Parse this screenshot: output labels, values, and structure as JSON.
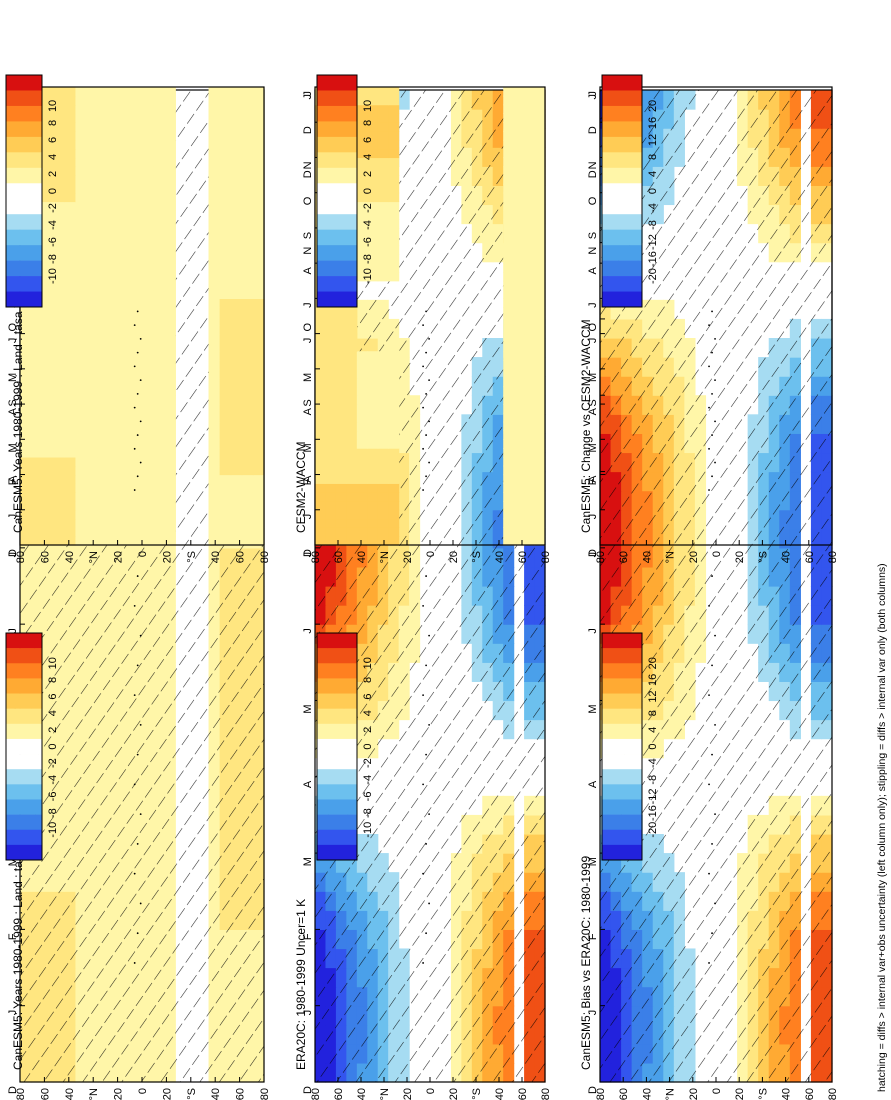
{
  "figure": {
    "orientation": "rotated-90-ccw",
    "caption": "hatching = diffs > internal var+obs uncertainty (left column only); stippling = diffs > internal var only (both columns)"
  },
  "chart_data": [
    {
      "id": "p1",
      "type": "heatmap",
      "column": "left",
      "row": 1,
      "title": "CanESM5: Years 1980-1999 : Land : tasa (K)",
      "x": [
        "D",
        "J",
        "F",
        "M",
        "A",
        "M",
        "J",
        "J",
        "A",
        "S",
        "O",
        "N",
        "D",
        "J"
      ],
      "y": [
        "80",
        "60",
        "40",
        "°N",
        "20",
        "0",
        "20",
        "°S",
        "40",
        "60",
        "80"
      ],
      "colorbar": {
        "ticks": [
          "10",
          "8",
          "6",
          "4",
          "2",
          "0",
          "-2",
          "-4",
          "-6",
          "-8",
          "-10"
        ]
      },
      "field": "mostly-positive-weak",
      "hatching": true,
      "stippling": true
    },
    {
      "id": "p2",
      "type": "heatmap",
      "column": "left",
      "row": 2,
      "title": "ERA20C: 1980-1999 Uncer=1 K",
      "x": [
        "D",
        "J",
        "F",
        "M",
        "A",
        "M",
        "J",
        "J",
        "A",
        "S",
        "O",
        "N",
        "D",
        "J"
      ],
      "y": [
        "80",
        "60",
        "40",
        "°N",
        "20",
        "0",
        "20",
        "°S",
        "40",
        "60",
        "80"
      ],
      "colorbar": {
        "ticks": [
          "10",
          "8",
          "6",
          "4",
          "2",
          "0",
          "-2",
          "-4",
          "-6",
          "-8",
          "-10"
        ]
      },
      "field": "seasonal-cycle-strong",
      "hatching": true,
      "stippling": true
    },
    {
      "id": "p3",
      "type": "heatmap",
      "column": "left",
      "row": 3,
      "title": "CanESM5: Bias vs ERA20C: 1980-1999",
      "x": [
        "D",
        "J",
        "F",
        "M",
        "A",
        "M",
        "J",
        "J",
        "A",
        "S",
        "O",
        "N",
        "D",
        "J"
      ],
      "y": [
        "80",
        "60",
        "40",
        "°N",
        "20",
        "0",
        "20",
        "°S",
        "40",
        "60",
        "80"
      ],
      "colorbar": {
        "ticks": [
          "20",
          "16",
          "12",
          "8",
          "4",
          "0",
          "-4",
          "-8",
          "-12",
          "-16",
          "-20"
        ]
      },
      "field": "seasonal-cycle-strong",
      "hatching": true,
      "stippling": true
    },
    {
      "id": "p4",
      "type": "heatmap",
      "column": "right",
      "row": 1,
      "title": "CanESM5: Years 1980-1999 : Land : tasa (K)",
      "x": [
        "D",
        "J",
        "F",
        "M",
        "A",
        "M",
        "J",
        "J",
        "A",
        "S",
        "O",
        "N",
        "D",
        "J"
      ],
      "y": [
        "80",
        "60",
        "40",
        "°N",
        "20",
        "0",
        "20",
        "°S",
        "40",
        "60",
        "80"
      ],
      "colorbar": {
        "ticks": [
          "10",
          "8",
          "6",
          "4",
          "2",
          "0",
          "-2",
          "-4",
          "-6",
          "-8",
          "-10"
        ]
      },
      "field": "mostly-positive-weak",
      "hatching": false,
      "stippling": true
    },
    {
      "id": "p5",
      "type": "heatmap",
      "column": "right",
      "row": 2,
      "title": "CESM2-WACCM",
      "x": [
        "D",
        "J",
        "F",
        "M",
        "A",
        "M",
        "J",
        "J",
        "A",
        "S",
        "O",
        "N",
        "D",
        "J"
      ],
      "y": [
        "80",
        "60",
        "40",
        "°N",
        "20",
        "0",
        "20",
        "°S",
        "40",
        "60",
        "80"
      ],
      "colorbar": {
        "ticks": [
          "10",
          "8",
          "6",
          "4",
          "2",
          "0",
          "-2",
          "-4",
          "-6",
          "-8",
          "-10"
        ]
      },
      "field": "north-positive-weak",
      "hatching": false,
      "stippling": true
    },
    {
      "id": "p6",
      "type": "heatmap",
      "column": "right",
      "row": 3,
      "title": "CanESM5: Change vs CESM2-WACCM",
      "x": [
        "D",
        "J",
        "F",
        "M",
        "A",
        "M",
        "J",
        "J",
        "A",
        "S",
        "O",
        "N",
        "D",
        "J"
      ],
      "y": [
        "80",
        "60",
        "40",
        "°N",
        "20",
        "0",
        "20",
        "°S",
        "40",
        "60",
        "80"
      ],
      "colorbar": {
        "ticks": [
          "20",
          "16",
          "12",
          "8",
          "4",
          "0",
          "-4",
          "-8",
          "-12",
          "-16",
          "-20"
        ]
      },
      "field": "near-zero",
      "hatching": false,
      "stippling": true
    }
  ],
  "palette": [
    "#2222dd",
    "#3355ee",
    "#3b7fe8",
    "#4aa0ea",
    "#6cc0ee",
    "#a6dcf2",
    "#ffffff",
    "#ffffff",
    "#fff6a8",
    "#ffe680",
    "#ffcc55",
    "#ffaa33",
    "#ff8020",
    "#f05015",
    "#d81010"
  ]
}
